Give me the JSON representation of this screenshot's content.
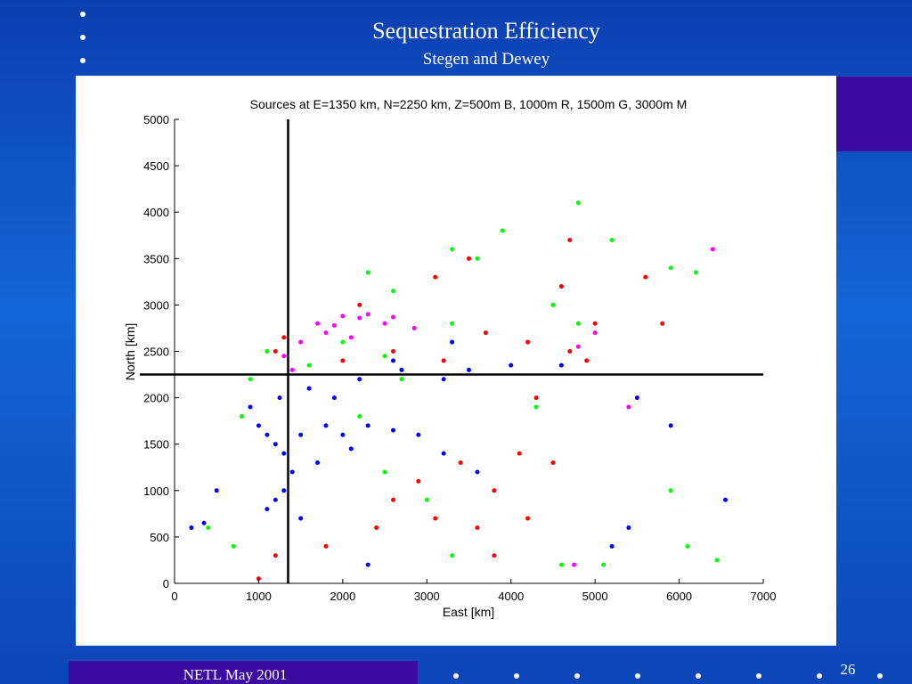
{
  "slide": {
    "title": "Sequestration Efficiency",
    "subtitle": "Stegen and Dewey",
    "footer": "NETL May 2001",
    "page_number": "26"
  },
  "colors": {
    "background": "#1466d8",
    "accent_purple": "#3b0a9e",
    "series_B": "#0000ff",
    "series_R": "#ff0000",
    "series_G": "#00ff00",
    "series_M": "#ff00ff"
  },
  "chart_data": {
    "type": "scatter",
    "title": "Sources at E=1350 km, N=2250 km, Z=500m B, 1000m R, 1500m G, 3000m M",
    "xlabel": "East [km]",
    "ylabel": "North [km]",
    "xlim": [
      0,
      7000
    ],
    "ylim": [
      0,
      5000
    ],
    "xticks": [
      "0",
      "1000",
      "2000",
      "3000",
      "4000",
      "5000",
      "6000",
      "7000"
    ],
    "yticks": [
      "0",
      "500",
      "1000",
      "1500",
      "2000",
      "2500",
      "3000",
      "3500",
      "4000",
      "4500",
      "5000"
    ],
    "grid": false,
    "source_crosshair": {
      "x": 1350,
      "y": 2250
    },
    "series": [
      {
        "color": "#0000ff",
        "points": [
          [
            1100,
            1600
          ],
          [
            1200,
            1500
          ],
          [
            1300,
            1400
          ],
          [
            1000,
            1700
          ],
          [
            1500,
            1600
          ],
          [
            1800,
            1700
          ],
          [
            2000,
            1600
          ],
          [
            2300,
            1700
          ],
          [
            2600,
            1650
          ],
          [
            2900,
            1600
          ],
          [
            1200,
            900
          ],
          [
            1100,
            800
          ],
          [
            1300,
            1000
          ],
          [
            1400,
            1200
          ],
          [
            1250,
            2000
          ],
          [
            1600,
            2100
          ],
          [
            2200,
            2200
          ],
          [
            2700,
            2300
          ],
          [
            3200,
            2200
          ],
          [
            3500,
            2300
          ],
          [
            4000,
            2350
          ],
          [
            4600,
            2350
          ],
          [
            200,
            600
          ],
          [
            350,
            650
          ],
          [
            500,
            1000
          ],
          [
            3200,
            1400
          ],
          [
            3600,
            1200
          ],
          [
            5200,
            400
          ],
          [
            5400,
            600
          ],
          [
            6550,
            900
          ],
          [
            5900,
            1700
          ],
          [
            5500,
            2000
          ],
          [
            1500,
            700
          ],
          [
            2300,
            200
          ],
          [
            900,
            1900
          ],
          [
            1700,
            1300
          ],
          [
            2100,
            1450
          ],
          [
            1900,
            2000
          ],
          [
            3300,
            2600
          ],
          [
            2600,
            2400
          ]
        ]
      },
      {
        "color": "#ff0000",
        "points": [
          [
            1300,
            2650
          ],
          [
            1200,
            2500
          ],
          [
            2000,
            2400
          ],
          [
            2600,
            2500
          ],
          [
            3200,
            2400
          ],
          [
            3700,
            2700
          ],
          [
            4200,
            2600
          ],
          [
            4700,
            2500
          ],
          [
            4900,
            2400
          ],
          [
            4300,
            2000
          ],
          [
            3400,
            1300
          ],
          [
            3800,
            1000
          ],
          [
            4200,
            700
          ],
          [
            4500,
            1300
          ],
          [
            4700,
            3700
          ],
          [
            5600,
            3300
          ],
          [
            5800,
            2800
          ],
          [
            3500,
            3500
          ],
          [
            3100,
            3300
          ],
          [
            2200,
            3000
          ],
          [
            2600,
            900
          ],
          [
            2900,
            1100
          ],
          [
            3100,
            700
          ],
          [
            3600,
            600
          ],
          [
            2400,
            600
          ],
          [
            1800,
            400
          ],
          [
            1200,
            300
          ],
          [
            1000,
            50
          ],
          [
            3800,
            300
          ],
          [
            4100,
            1400
          ],
          [
            4600,
            3200
          ],
          [
            5000,
            2800
          ]
        ]
      },
      {
        "color": "#00ff00",
        "points": [
          [
            800,
            1800
          ],
          [
            900,
            2200
          ],
          [
            1100,
            2500
          ],
          [
            1500,
            2600
          ],
          [
            2000,
            2600
          ],
          [
            2500,
            2450
          ],
          [
            3300,
            3600
          ],
          [
            3600,
            3500
          ],
          [
            3900,
            3800
          ],
          [
            4800,
            4100
          ],
          [
            5200,
            3700
          ],
          [
            5900,
            3400
          ],
          [
            6200,
            3350
          ],
          [
            4500,
            3000
          ],
          [
            4800,
            2800
          ],
          [
            3300,
            2800
          ],
          [
            2700,
            2200
          ],
          [
            2500,
            1200
          ],
          [
            3000,
            900
          ],
          [
            3300,
            300
          ],
          [
            4600,
            200
          ],
          [
            5100,
            200
          ],
          [
            6100,
            400
          ],
          [
            6450,
            250
          ],
          [
            5900,
            1000
          ],
          [
            4300,
            1900
          ],
          [
            2300,
            3350
          ],
          [
            2600,
            3150
          ],
          [
            700,
            400
          ],
          [
            400,
            600
          ],
          [
            1600,
            2350
          ],
          [
            2200,
            1800
          ]
        ]
      },
      {
        "color": "#ff00ff",
        "points": [
          [
            1700,
            2800
          ],
          [
            2000,
            2880
          ],
          [
            2300,
            2900
          ],
          [
            2600,
            2870
          ],
          [
            2850,
            2750
          ],
          [
            1500,
            2600
          ],
          [
            1800,
            2700
          ],
          [
            2500,
            2800
          ],
          [
            1300,
            2450
          ],
          [
            1400,
            2300
          ],
          [
            2100,
            2650
          ],
          [
            4800,
            2550
          ],
          [
            5400,
            1900
          ],
          [
            4750,
            200
          ],
          [
            6400,
            3600
          ],
          [
            5000,
            2700
          ],
          [
            1900,
            2780
          ],
          [
            2200,
            2860
          ]
        ]
      }
    ]
  }
}
